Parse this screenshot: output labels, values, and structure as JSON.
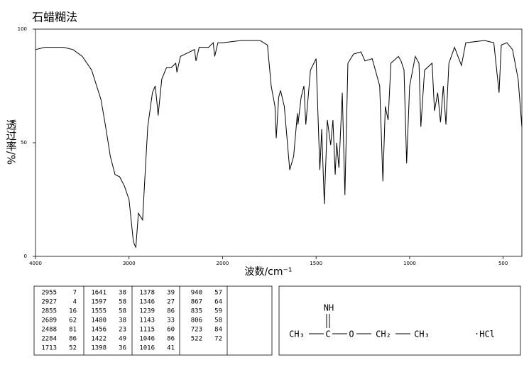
{
  "chart_data": {
    "type": "line",
    "title": "石蜡糊法",
    "y_label": "透过率/%",
    "x_label": "波数/cm⁻¹",
    "xlim": [
      4000,
      400
    ],
    "x_scale_break": 2000,
    "xticks": [
      4000,
      3000,
      2000,
      1500,
      1000,
      500
    ],
    "ylim": [
      0,
      100
    ],
    "yticks": [
      0,
      50,
      100
    ],
    "x": [
      4000,
      3900,
      3700,
      3600,
      3500,
      3400,
      3300,
      3250,
      3200,
      3150,
      3100,
      3050,
      3000,
      2970,
      2955,
      2940,
      2927,
      2900,
      2870,
      2855,
      2830,
      2800,
      2750,
      2720,
      2700,
      2689,
      2650,
      2600,
      2550,
      2500,
      2488,
      2450,
      2400,
      2300,
      2284,
      2250,
      2150,
      2100,
      2084,
      2050,
      2000,
      1900,
      1800,
      1760,
      1740,
      1720,
      1713,
      1700,
      1690,
      1670,
      1641,
      1620,
      1600,
      1597,
      1580,
      1565,
      1555,
      1530,
      1500,
      1480,
      1470,
      1456,
      1440,
      1422,
      1410,
      1398,
      1390,
      1378,
      1360,
      1346,
      1330,
      1300,
      1260,
      1239,
      1200,
      1160,
      1143,
      1130,
      1115,
      1100,
      1060,
      1046,
      1030,
      1016,
      1000,
      970,
      950,
      940,
      920,
      880,
      867,
      850,
      835,
      820,
      806,
      790,
      760,
      723,
      700,
      600,
      550,
      522,
      510,
      480,
      450,
      420,
      400
    ],
    "series": [
      {
        "color": "#000000",
        "values": [
          91,
          92,
          92,
          91,
          88,
          82,
          69,
          57,
          44,
          36,
          35,
          31,
          25,
          13,
          7,
          5,
          4,
          19,
          17,
          16,
          35,
          57,
          72,
          75,
          67,
          62,
          78,
          83,
          83,
          85,
          81,
          88,
          89,
          91,
          86,
          92,
          92,
          94,
          88,
          94,
          94,
          95,
          95,
          93,
          75,
          66,
          52,
          70,
          73,
          66,
          38,
          44,
          63,
          58,
          70,
          75,
          58,
          82,
          87,
          38,
          56,
          23,
          60,
          49,
          60,
          36,
          50,
          39,
          72,
          27,
          85,
          89,
          90,
          86,
          87,
          75,
          33,
          66,
          60,
          85,
          88,
          86,
          82,
          41,
          75,
          88,
          85,
          57,
          82,
          85,
          64,
          72,
          59,
          75,
          58,
          85,
          92,
          84,
          94,
          95,
          94,
          72,
          93,
          94,
          91,
          78,
          57
        ]
      }
    ]
  },
  "peak_table": {
    "columns": [
      [
        [
          2955,
          7
        ],
        [
          2927,
          4
        ],
        [
          2855,
          16
        ],
        [
          2689,
          62
        ],
        [
          2488,
          81
        ],
        [
          2284,
          86
        ],
        [
          1713,
          52
        ]
      ],
      [
        [
          1641,
          38
        ],
        [
          1597,
          58
        ],
        [
          1555,
          58
        ],
        [
          1480,
          38
        ],
        [
          1456,
          23
        ],
        [
          1422,
          49
        ],
        [
          1398,
          36
        ]
      ],
      [
        [
          1378,
          39
        ],
        [
          1346,
          27
        ],
        [
          1239,
          86
        ],
        [
          1143,
          33
        ],
        [
          1115,
          60
        ],
        [
          1046,
          86
        ],
        [
          1016,
          41
        ]
      ],
      [
        [
          940,
          57
        ],
        [
          867,
          64
        ],
        [
          835,
          59
        ],
        [
          806,
          58
        ],
        [
          723,
          84
        ],
        [
          522,
          72
        ]
      ]
    ]
  },
  "structure": {
    "nh": "NH",
    "ch3_left": "CH₃",
    "c": "C",
    "o": "O",
    "ch2": "CH₂",
    "ch3_right": "CH₃",
    "salt": "·HCl"
  }
}
